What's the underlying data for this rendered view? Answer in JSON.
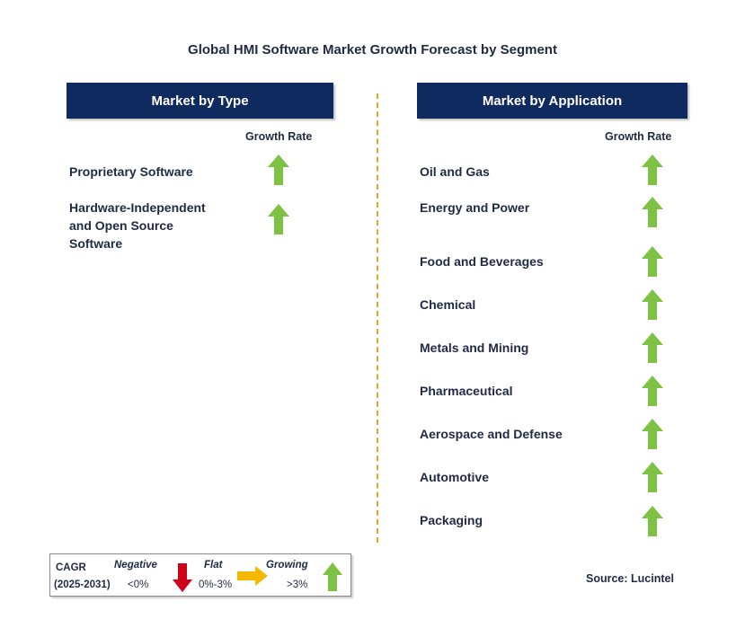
{
  "title": "Global HMI Software Market Growth Forecast by Segment",
  "type_panel": {
    "header": "Market by Type",
    "growth_label": "Growth Rate",
    "items": [
      {
        "label_lines": [
          "Proprietary Software"
        ],
        "trend": "growing"
      },
      {
        "label_lines": [
          "Hardware-Independent",
          "and Open Source",
          "Software"
        ],
        "trend": "growing"
      }
    ]
  },
  "application_panel": {
    "header": "Market by Application",
    "growth_label": "Growth Rate",
    "items": [
      {
        "label": "Oil and Gas",
        "trend": "growing"
      },
      {
        "label": "Energy and Power",
        "trend": "growing"
      },
      {
        "label": "Food and Beverages",
        "trend": "growing"
      },
      {
        "label": "Chemical",
        "trend": "growing"
      },
      {
        "label": "Metals and Mining",
        "trend": "growing"
      },
      {
        "label": "Pharmaceutical",
        "trend": "growing"
      },
      {
        "label": "Aerospace and Defense",
        "trend": "growing"
      },
      {
        "label": "Automotive",
        "trend": "growing"
      },
      {
        "label": "Packaging",
        "trend": "growing"
      }
    ]
  },
  "legend": {
    "cagr": "CAGR",
    "period": "(2025-2031)",
    "negative": {
      "label": "Negative",
      "range": "<0%",
      "icon": "down-arrow-icon"
    },
    "flat": {
      "label": "Flat",
      "range": "0%-3%",
      "icon": "right-arrow-icon"
    },
    "growing": {
      "label": "Growing",
      "range": ">3%",
      "icon": "up-arrow-icon"
    }
  },
  "source": "Source: Lucintel",
  "colors": {
    "header_bg": "#0e2a5e",
    "text": "#1f2a44",
    "growing": "#7dc242",
    "negative": "#d0021b",
    "flat": "#f5b800",
    "divider": "#f0a020"
  }
}
